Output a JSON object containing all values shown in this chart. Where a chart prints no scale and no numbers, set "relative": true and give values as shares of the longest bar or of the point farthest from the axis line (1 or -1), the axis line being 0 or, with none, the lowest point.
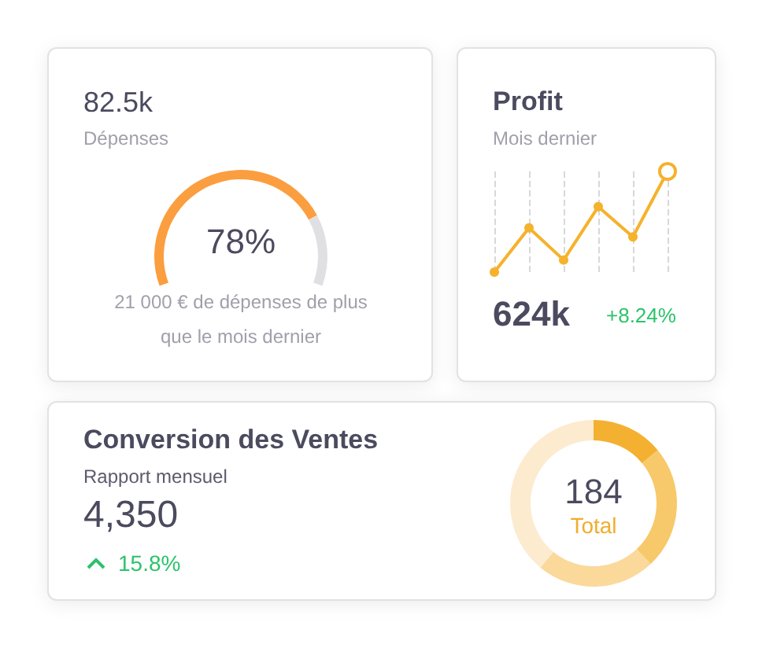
{
  "chart_data": [
    {
      "type": "donut",
      "title": "82.5k",
      "subtitle": "Dépenses",
      "categories": [
        null,
        null
      ],
      "values": [
        78,
        22
      ],
      "colors": [
        "#fb9e3f",
        "#e0e0e4"
      ],
      "annotations": [
        "78%",
        "21 000 € de dépenses de plus que le mois dernier"
      ]
    },
    {
      "type": "line",
      "title": "Profit",
      "subtitle": "Mois dernier",
      "relative": true,
      "categories": [
        null,
        null,
        null,
        null,
        null,
        null
      ],
      "series": [
        {
          "color": "#f5b22b",
          "values": [
            0,
            0.44,
            0.12,
            0.65,
            0.35,
            1
          ]
        }
      ],
      "grid": "x",
      "marker": "circle",
      "line_style": "solid",
      "annotations": [
        "624k",
        "+8.24%"
      ]
    },
    {
      "type": "donut",
      "title": "Conversion des Ventes",
      "categories": [
        null,
        null,
        null,
        null
      ],
      "values": [
        14,
        24,
        23,
        39
      ],
      "colors": [
        "#f4b030",
        "#f7c96a",
        "#fad99a",
        "#fdebd0"
      ],
      "annotations": [
        "Rapport mensuel",
        "4,350",
        "15.8%",
        "184",
        "Total"
      ]
    }
  ]
}
